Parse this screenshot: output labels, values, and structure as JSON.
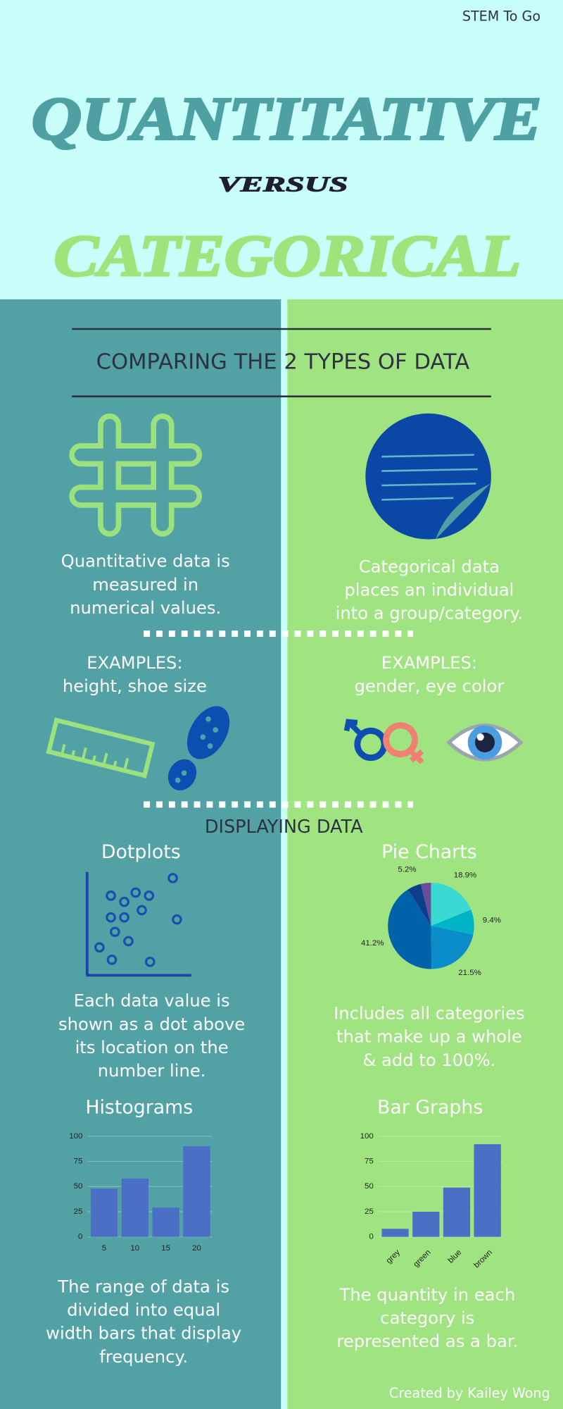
{
  "header": {
    "brand": "STEM To Go",
    "title": "QUANTITATIVE",
    "connector": "VERSUS",
    "title2": "CATEGORICAL"
  },
  "subtitle": "COMPARING THE 2 TYPES OF DATA",
  "quantitative": {
    "description": [
      "Quantitative data is",
      "measured in",
      "numerical values."
    ],
    "examples_label": "EXAMPLES:",
    "examples": "height, shoe size"
  },
  "categorical": {
    "description": [
      "Categorical data",
      "places an individual",
      "into a group/category."
    ],
    "examples_label": "EXAMPLES:",
    "examples": "gender, eye color"
  },
  "section_title": "DISPLAYING DATA",
  "chart_data": [
    {
      "type": "scatter",
      "title": "Dotplots",
      "x": [
        83,
        23,
        36,
        47,
        60,
        53,
        23,
        36,
        87,
        27,
        40,
        12,
        24,
        61
      ],
      "y": [
        94,
        77,
        71,
        80,
        77,
        63,
        56,
        56,
        54,
        42,
        33,
        27,
        15,
        13
      ],
      "xlim": [
        0,
        100
      ],
      "ylim": [
        0,
        100
      ],
      "color": "#1a4fb0",
      "caption": [
        "Each data value is",
        "shown as a dot above",
        "its location on the",
        "number line."
      ]
    },
    {
      "type": "pie",
      "title": "Pie Charts",
      "values": [
        18.9,
        9.4,
        21.5,
        41.2,
        5.2,
        3.8
      ],
      "value_labels": [
        "18.9%",
        "9.4%",
        "21.5%",
        "41.2%",
        "5.2%",
        null
      ],
      "colors": [
        "#3ad9d1",
        "#00b4c8",
        "#0a8dc8",
        "#0063aa",
        "#0d3e8c",
        "#6a4c9c"
      ],
      "caption": [
        "Includes all categories",
        "that make up a whole",
        "& add to 100%."
      ]
    },
    {
      "type": "bar",
      "title": "Histograms",
      "x": [
        5,
        10,
        15,
        20
      ],
      "xlim": [
        2.5,
        22.5
      ],
      "values": [
        48,
        58,
        29,
        90
      ],
      "ylim": [
        0,
        100
      ],
      "yticks": [
        0,
        25,
        50,
        75,
        100
      ],
      "grid": true,
      "color": "#4a6fc4",
      "caption": [
        "The range of data is",
        "divided into equal",
        "width bars that display",
        "frequency."
      ]
    },
    {
      "type": "bar",
      "title": "Bar Graphs",
      "categories": [
        "grey",
        "green",
        "blue",
        "brown"
      ],
      "values": [
        8,
        25,
        49,
        92
      ],
      "ylim": [
        0,
        100
      ],
      "yticks": [
        0,
        25,
        50,
        75,
        100
      ],
      "grid": true,
      "color": "#4a6fc4",
      "caption": [
        "The quantity in each",
        "category is",
        "represented as a bar."
      ]
    }
  ],
  "footer": "Created by Kailey Wong"
}
